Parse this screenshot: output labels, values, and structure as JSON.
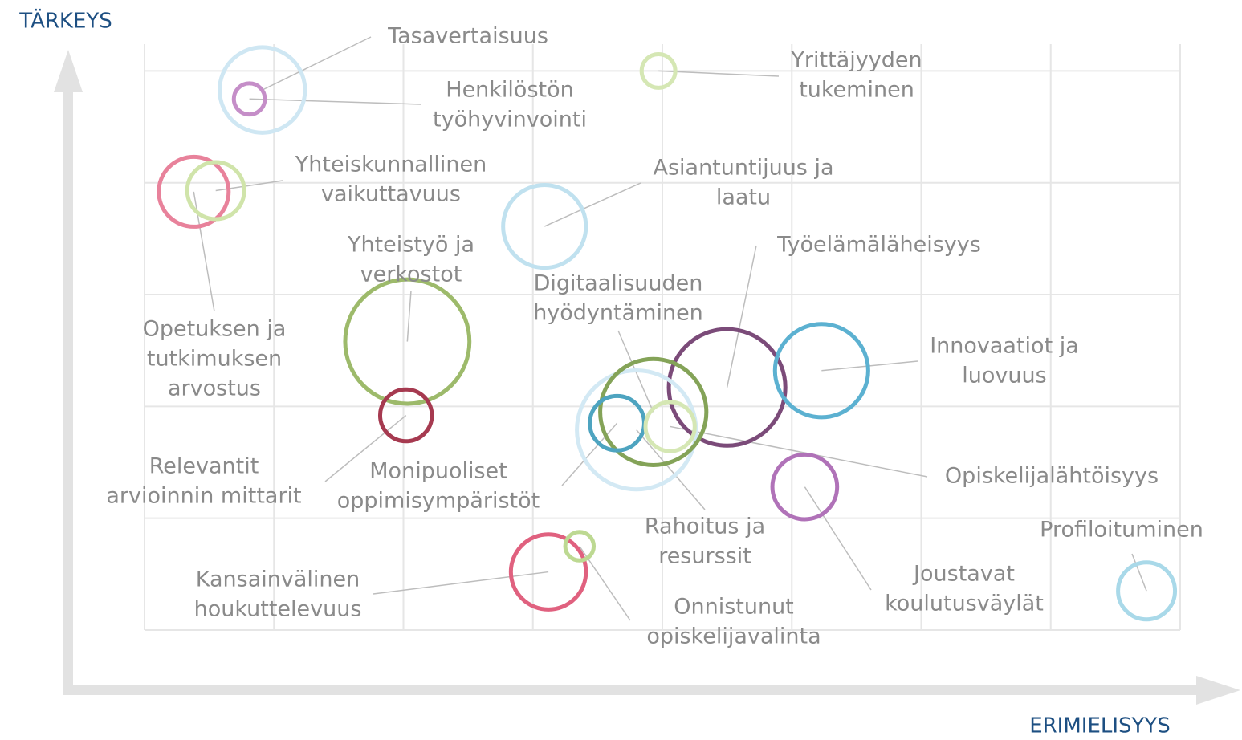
{
  "chart_data": {
    "type": "bubble",
    "y_label": "TÄRKEYS",
    "x_label": "ERIMIELISYYS",
    "xlim": [
      0,
      8
    ],
    "xticks": [
      0,
      1,
      2,
      3,
      4,
      5,
      6,
      7,
      8
    ],
    "ylim": [
      0,
      5.24
    ],
    "yticks": [
      0,
      1,
      2,
      3,
      4,
      5
    ],
    "grid": true,
    "points": [
      {
        "label": [
          "Tasavertaisuus"
        ],
        "x": 0.91,
        "y": 4.83,
        "size": 0.33,
        "color": "#cfe7f3"
      },
      {
        "label": [
          "Henkilöstön",
          "työhyvinvointi"
        ],
        "x": 0.81,
        "y": 4.75,
        "size": 0.12,
        "color": "#c58ec8"
      },
      {
        "label": [
          "Yrittäjyyden",
          "tukeminen"
        ],
        "x": 3.97,
        "y": 5.0,
        "size": 0.13,
        "color": "#d5e7b4"
      },
      {
        "label": [
          "Opetuksen ja",
          "tutkimuksen",
          "arvostus"
        ],
        "x": 0.38,
        "y": 3.92,
        "size": 0.27,
        "color": "#e8829b"
      },
      {
        "label": [
          "Yhteiskunnallinen",
          "vaikuttavuus"
        ],
        "x": 0.55,
        "y": 3.93,
        "size": 0.22,
        "color": "#d0e4aa"
      },
      {
        "label": [
          "Asiantuntijuus ja",
          "laatu"
        ],
        "x": 3.09,
        "y": 3.61,
        "size": 0.32,
        "color": "#c0e1ef"
      },
      {
        "label": [
          "Yhteistyö ja",
          "verkostot"
        ],
        "x": 2.03,
        "y": 2.58,
        "size": 0.48,
        "color": "#9dba6b"
      },
      {
        "label": [
          "Relevantit",
          "arvioinnin mittarit"
        ],
        "x": 2.02,
        "y": 1.92,
        "size": 0.2,
        "color": "#a63a50"
      },
      {
        "label": [
          "Työelämäläheisyys"
        ],
        "x": 4.5,
        "y": 2.17,
        "size": 0.45,
        "color": "#7b4b79"
      },
      {
        "label": [
          "Innovaatiot ja",
          "luovuus"
        ],
        "x": 5.23,
        "y": 2.32,
        "size": 0.36,
        "color": "#5cb1d1"
      },
      {
        "label": [
          "Rahoitus ja",
          "resurssit"
        ],
        "x": 3.8,
        "y": 1.79,
        "size": 0.46,
        "color": "#d3e9f4"
      },
      {
        "label": [
          "Digitaalisuuden",
          "hyödyntäminen"
        ],
        "x": 3.93,
        "y": 1.95,
        "size": 0.41,
        "color": "#84a358"
      },
      {
        "label": [
          "Monipuoliset",
          "oppimisympäristöt"
        ],
        "x": 3.65,
        "y": 1.85,
        "size": 0.21,
        "color": "#4ea4c0"
      },
      {
        "label": [
          "Opiskelijalähtöisyys"
        ],
        "x": 4.06,
        "y": 1.82,
        "size": 0.19,
        "color": "#d5e7b4"
      },
      {
        "label": [
          "Joustavat",
          "koulutusväylät"
        ],
        "x": 5.1,
        "y": 1.28,
        "size": 0.25,
        "color": "#b072b8"
      },
      {
        "label": [
          "Profiloituminen"
        ],
        "x": 7.74,
        "y": 0.35,
        "size": 0.22,
        "color": "#a9d9e9"
      },
      {
        "label": [
          "Kansainvälinen",
          "houkuttelevuus"
        ],
        "x": 3.12,
        "y": 0.52,
        "size": 0.29,
        "color": "#e0617f"
      },
      {
        "label": [
          "Onnistunut",
          "opiskelijavalinta"
        ],
        "x": 3.36,
        "y": 0.75,
        "size": 0.11,
        "color": "#bdd992"
      }
    ]
  }
}
